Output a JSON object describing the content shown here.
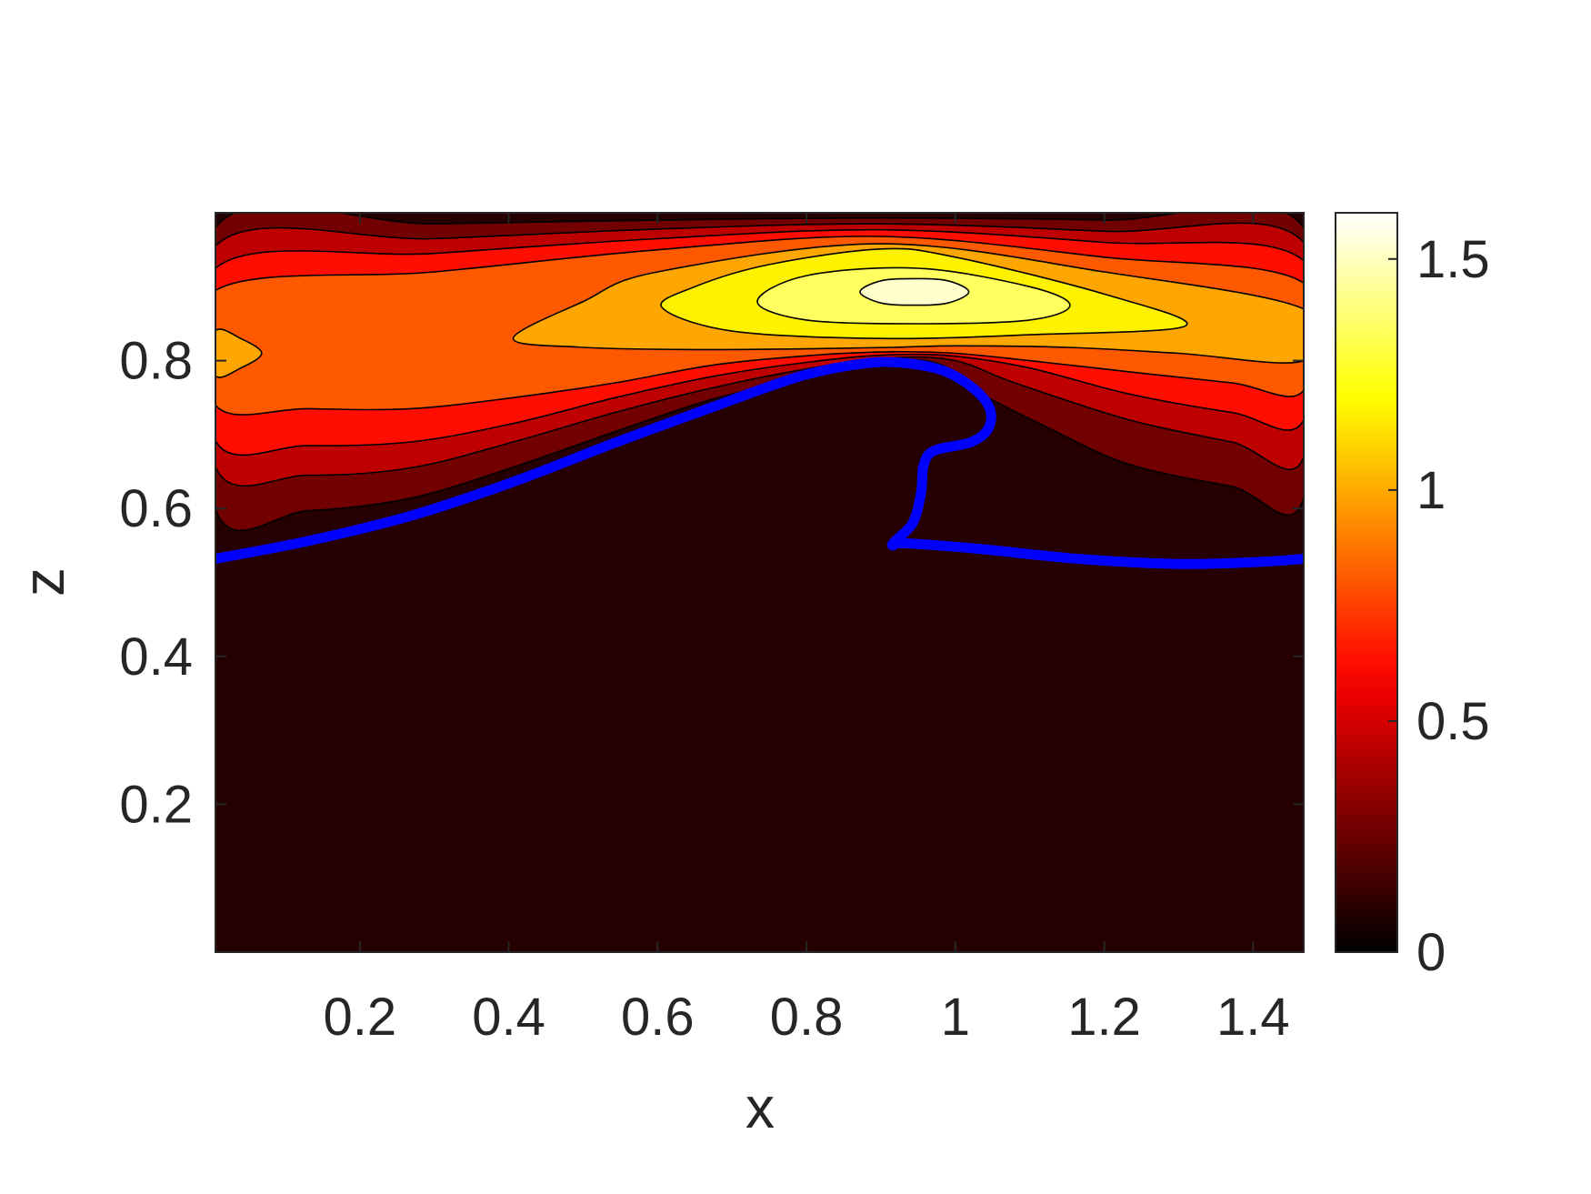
{
  "chart_data": {
    "type": "contourf",
    "colormap": "hot",
    "xlabel": "x",
    "ylabel": "z",
    "xlim": [
      0.006,
      1.468
    ],
    "ylim": [
      0,
      1
    ],
    "xticks": [
      0.2,
      0.4,
      0.6,
      0.8,
      1,
      1.2,
      1.4
    ],
    "yticks": [
      0.2,
      0.4,
      0.6,
      0.8
    ],
    "clim": [
      0,
      1.6
    ],
    "cticks": [
      0,
      0.5,
      1,
      1.5
    ],
    "contours": [
      {
        "level": 0.18,
        "x": [
          0.006,
          0.13,
          0.268,
          0.406,
          0.543,
          0.681,
          0.819,
          0.916,
          0.98,
          1.026,
          1.123,
          1.233,
          1.371,
          1.468,
          1.468,
          1.2,
          0.9,
          0.6,
          0.3,
          0.006
        ],
        "y": [
          0.6,
          0.597,
          0.614,
          0.656,
          0.704,
          0.75,
          0.78,
          0.8,
          0.795,
          0.76,
          0.71,
          0.66,
          0.63,
          0.615,
          0.98,
          0.99,
          0.993,
          0.99,
          0.985,
          0.98
        ]
      },
      {
        "level": 0.36,
        "x": [
          0.006,
          0.13,
          0.268,
          0.406,
          0.543,
          0.681,
          0.819,
          0.916,
          1.0,
          1.08,
          1.233,
          1.371,
          1.468,
          1.468,
          1.2,
          0.9,
          0.6,
          0.3,
          0.006
        ],
        "y": [
          0.657,
          0.645,
          0.655,
          0.69,
          0.73,
          0.765,
          0.792,
          0.804,
          0.8,
          0.77,
          0.72,
          0.69,
          0.67,
          0.96,
          0.975,
          0.985,
          0.978,
          0.965,
          0.955
        ]
      },
      {
        "level": 0.54,
        "x": [
          0.006,
          0.13,
          0.268,
          0.406,
          0.543,
          0.681,
          0.819,
          0.916,
          1.0,
          1.1,
          1.233,
          1.371,
          1.468,
          1.468,
          1.2,
          0.9,
          0.6,
          0.3,
          0.006
        ],
        "y": [
          0.692,
          0.685,
          0.69,
          0.715,
          0.75,
          0.78,
          0.8,
          0.808,
          0.806,
          0.79,
          0.755,
          0.73,
          0.72,
          0.935,
          0.96,
          0.977,
          0.965,
          0.945,
          0.925
        ]
      },
      {
        "level": 0.72,
        "x": [
          0.006,
          0.13,
          0.268,
          0.406,
          0.543,
          0.681,
          0.819,
          0.916,
          1.0,
          1.1,
          1.233,
          1.371,
          1.468,
          1.468,
          1.2,
          0.9,
          0.6,
          0.3,
          0.006
        ],
        "y": [
          0.74,
          0.735,
          0.735,
          0.75,
          0.77,
          0.795,
          0.808,
          0.812,
          0.81,
          0.8,
          0.785,
          0.77,
          0.76,
          0.905,
          0.94,
          0.968,
          0.95,
          0.92,
          0.895
        ]
      },
      {
        "level": 0.9,
        "x": [
          0.006,
          0.04,
          0.068,
          0.04,
          0.006
        ],
        "y": [
          0.78,
          0.79,
          0.81,
          0.83,
          0.84
        ]
      },
      {
        "level": 0.9,
        "x": [
          0.406,
          0.5,
          0.65,
          0.8,
          0.916,
          1.0,
          1.15,
          1.3,
          1.468,
          1.468,
          1.2,
          0.9,
          0.6,
          0.5
        ],
        "y": [
          0.83,
          0.818,
          0.815,
          0.816,
          0.818,
          0.82,
          0.818,
          0.81,
          0.8,
          0.87,
          0.92,
          0.958,
          0.92,
          0.88
        ]
      },
      {
        "level": 1.08,
        "x": [
          0.606,
          0.7,
          0.9,
          1.1,
          1.309,
          1.2,
          1.0,
          0.9,
          0.75,
          0.65
        ],
        "y": [
          0.872,
          0.84,
          0.83,
          0.835,
          0.847,
          0.89,
          0.94,
          0.951,
          0.93,
          0.9
        ]
      },
      {
        "level": 1.26,
        "x": [
          0.734,
          0.8,
          0.95,
          1.1,
          1.154,
          1.1,
          0.95,
          0.8
        ],
        "y": [
          0.88,
          0.855,
          0.85,
          0.855,
          0.875,
          0.9,
          0.925,
          0.915
        ]
      },
      {
        "level": 1.44,
        "x": [
          0.872,
          0.9,
          0.945,
          0.99,
          1.018,
          0.99,
          0.945,
          0.9
        ],
        "y": [
          0.893,
          0.878,
          0.875,
          0.878,
          0.893,
          0.908,
          0.911,
          0.908
        ]
      }
    ],
    "curve": {
      "color": "#0000ff",
      "x": [
        0.006,
        0.13,
        0.268,
        0.406,
        0.543,
        0.681,
        0.792,
        0.875,
        0.93,
        0.985,
        1.026,
        1.047,
        1.043,
        1.019,
        0.971,
        0.957,
        0.954,
        0.943,
        0.919,
        0.916,
        0.93,
        1.026,
        1.164,
        1.302,
        1.412,
        1.468
      ],
      "y": [
        0.532,
        0.556,
        0.59,
        0.636,
        0.689,
        0.74,
        0.779,
        0.796,
        0.797,
        0.786,
        0.761,
        0.733,
        0.706,
        0.689,
        0.678,
        0.657,
        0.622,
        0.581,
        0.556,
        0.55,
        0.553,
        0.546,
        0.532,
        0.525,
        0.528,
        0.532
      ]
    }
  }
}
